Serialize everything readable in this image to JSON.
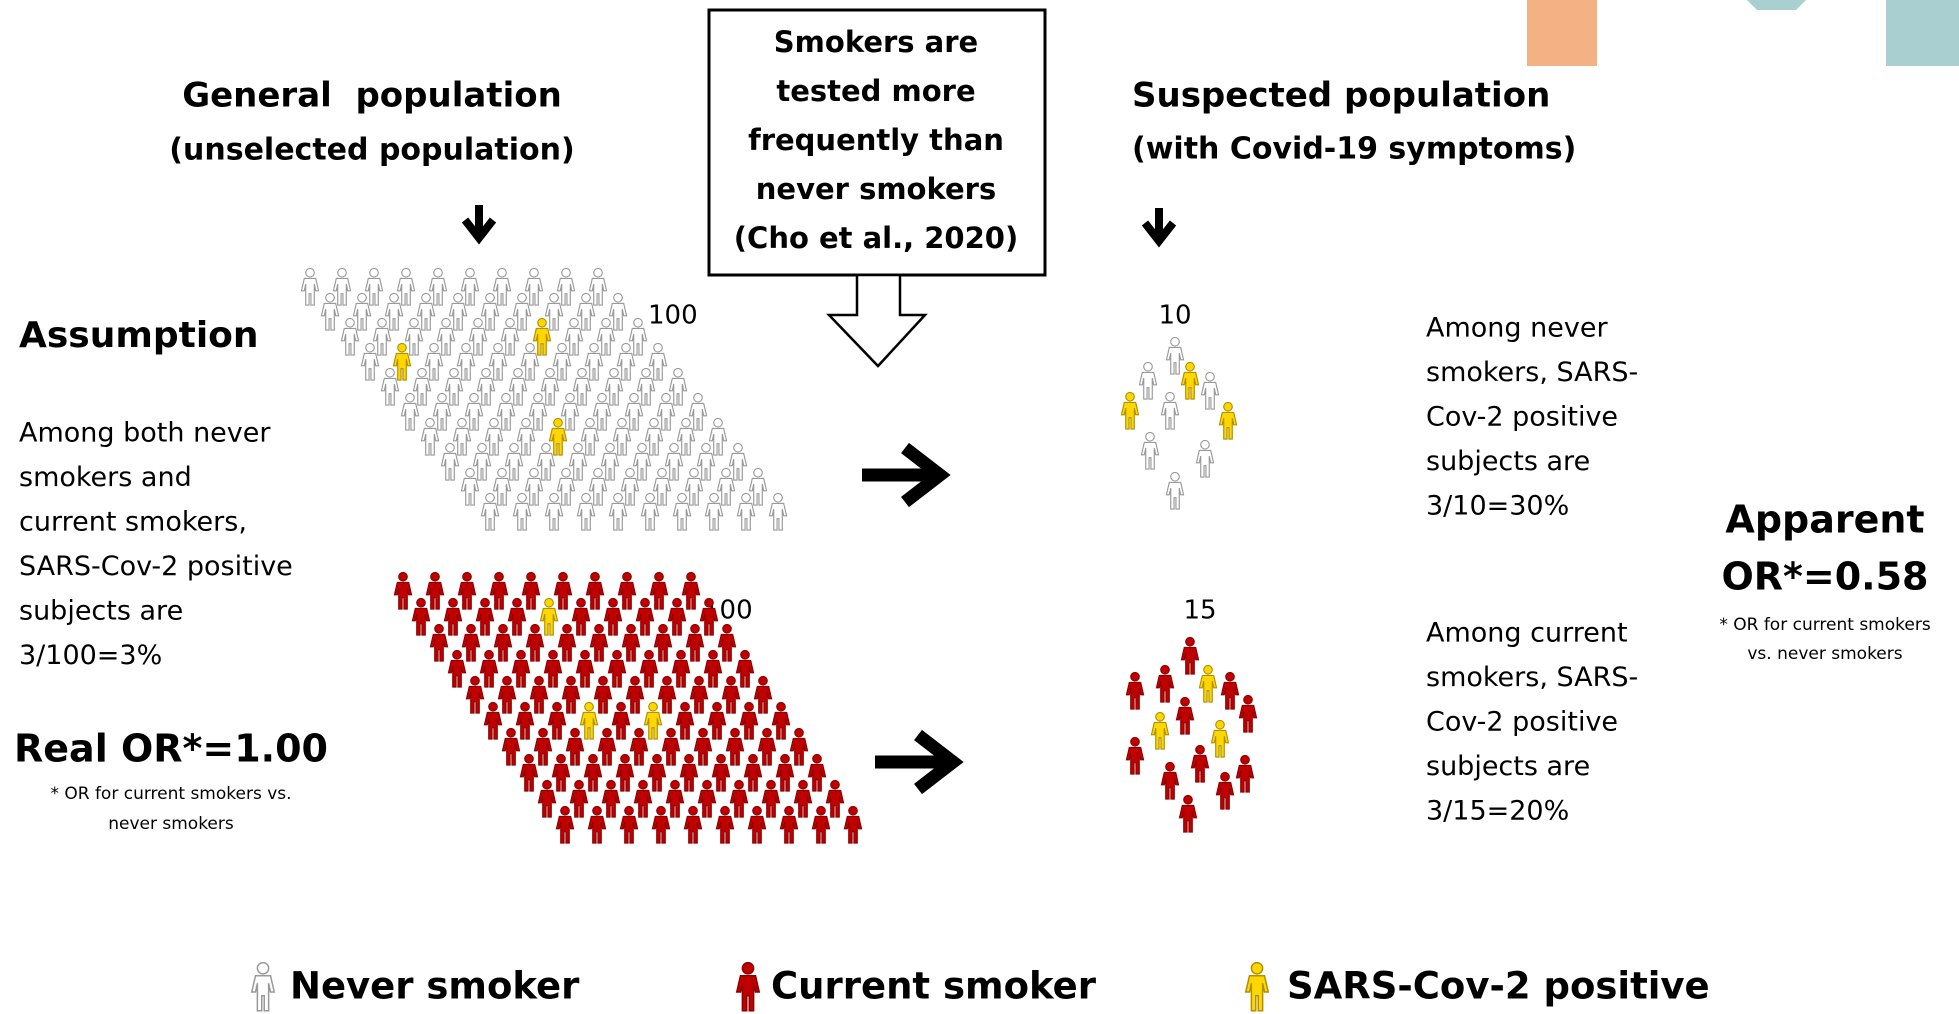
{
  "left_header": {
    "title": "General  population",
    "subtitle": "(unselected population)"
  },
  "box": {
    "lines": [
      "Smokers are",
      "tested more",
      "frequently than",
      "never smokers",
      "(Cho et al., 2020)"
    ]
  },
  "right_header": {
    "title": "Suspected population",
    "subtitle": "(with Covid-19 symptoms)"
  },
  "assumption": {
    "title": "Assumption",
    "lines": [
      "Among both never",
      "smokers and",
      "current smokers,",
      "SARS-Cov-2 positive",
      "subjects are",
      "3/100=3%"
    ]
  },
  "real_or": {
    "title": "Real OR*=1.00",
    "note_lines": [
      "* OR for current smokers vs.",
      "never smokers"
    ]
  },
  "counts": {
    "general_never": 100,
    "general_current": 100,
    "suspected_never": 10,
    "suspected_current": 15
  },
  "results": {
    "never": [
      "Among never",
      "smokers, SARS-",
      "Cov-2 positive",
      "subjects are",
      "3/10=30%"
    ],
    "current": [
      "Among current",
      "smokers, SARS-",
      "Cov-2 positive",
      "subjects are",
      "3/15=20%"
    ]
  },
  "apparent_or": {
    "lines": [
      "Apparent",
      "OR*=0.58"
    ],
    "note_lines": [
      "* OR for current smokers",
      "vs. never smokers"
    ]
  },
  "legend": [
    "Never smoker",
    "Current smoker",
    "SARS-Cov-2 positive"
  ]
}
